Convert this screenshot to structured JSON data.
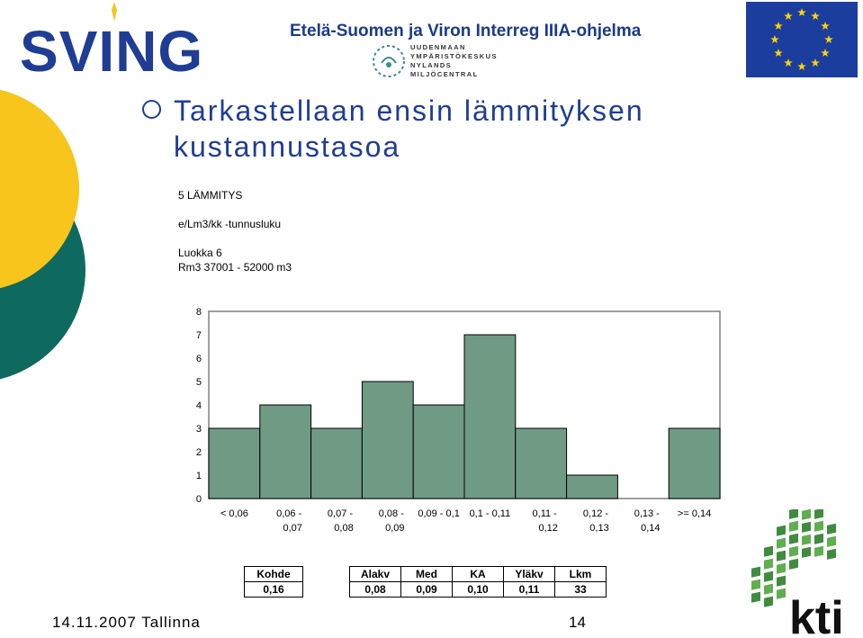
{
  "header": {
    "logo_text": "SVING",
    "program_title": "Etelä-Suomen ja Viron Interreg IIIA-ohjelma",
    "partner_logo_lines": [
      "UUDENMAAN",
      "YMPÄRISTÖKESKUS",
      "NYLANDS",
      "MILJÖCENTRAL"
    ]
  },
  "title": {
    "line1": "Tarkastellaan ensin lämmityksen",
    "line2": "kustannustasoa"
  },
  "subtitle": {
    "heading": "5 LÄMMITYS",
    "metric": "e/Lm3/kk -tunnusluku",
    "class": "Luokka 6",
    "range": "Rm3 37001 - 52000 m3"
  },
  "chart_data": {
    "type": "bar",
    "categories": [
      "< 0,06",
      "0,06 - 0,07",
      "0,07 - 0,08",
      "0,08 - 0,09",
      "0,09 - 0,1",
      "0,1 - 0,11",
      "0,11 - 0,12",
      "0,12 - 0,13",
      "0,13 - 0,14",
      ">= 0,14"
    ],
    "category_lines": [
      [
        "< 0,06"
      ],
      [
        "0,06 -",
        "0,07"
      ],
      [
        "0,07 -",
        "0,08"
      ],
      [
        "0,08 -",
        "0,09"
      ],
      [
        "0,09 - 0,1"
      ],
      [
        "0,1 - 0,11"
      ],
      [
        "0,11 -",
        "0,12"
      ],
      [
        "0,12 -",
        "0,13"
      ],
      [
        "0,13 -",
        "0,14"
      ],
      [
        ">= 0,14"
      ]
    ],
    "values": [
      3,
      4,
      3,
      5,
      4,
      7,
      3,
      1,
      0,
      3
    ],
    "ylim": [
      0,
      8
    ],
    "yticks": [
      "0",
      "1",
      "2",
      "3",
      "4",
      "5",
      "6",
      "7",
      "8"
    ],
    "bar_color": "#6f9b84",
    "grid": false
  },
  "stats": {
    "kohde_header": "Kohde",
    "kohde_value": "0,16",
    "headers": [
      "Alakv",
      "Med",
      "KA",
      "Yläkv",
      "Lkm"
    ],
    "values": [
      "0,08",
      "0,09",
      "0,10",
      "0,11",
      "33"
    ]
  },
  "footer": {
    "date_place": "14.11.2007 Tallinna",
    "page": "14",
    "logo_text": "kti"
  },
  "colors": {
    "title_blue": "#1f3d94",
    "header_blue": "#1a3a8a",
    "sving_green": "#1f6b5c",
    "yellow": "#f7c51b",
    "teal": "#0e6a5e",
    "eu_blue": "#1b3d9e",
    "eu_star": "#ffd200",
    "kti_green": "#3f8c3f"
  }
}
